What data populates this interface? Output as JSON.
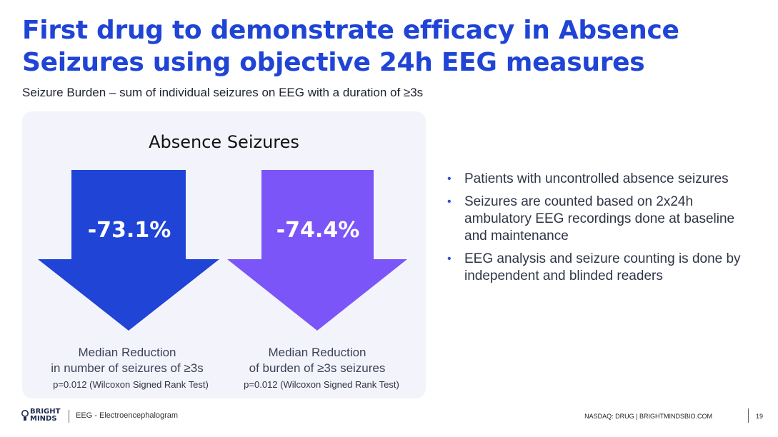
{
  "slide": {
    "title": "First drug to demonstrate efficacy in Absence Seizures using objective 24h EEG measures",
    "subtitle": "Seizure Burden – sum of individual seizures on EEG with a duration of ≥3s"
  },
  "panel": {
    "title": "Absence Seizures",
    "metrics": [
      {
        "value": "-73.1%",
        "caption_line1": "Median Reduction",
        "caption_line2": "in number of seizures of ≥3s",
        "p_value": "p=0.012 (Wilcoxon Signed Rank Test)",
        "color": "#1f44d6"
      },
      {
        "value": "-74.4%",
        "caption_line1": "Median Reduction",
        "caption_line2": "of burden of ≥3s seizures",
        "p_value": "p=0.012 (Wilcoxon Signed Rank Test)",
        "color": "#7b55f7"
      }
    ]
  },
  "bullets": [
    "Patients with uncontrolled absence seizures",
    "Seizures are counted based on 2x24h ambulatory EEG recordings done at baseline and maintenance",
    "EEG analysis and seizure counting is done by independent and blinded readers"
  ],
  "footer": {
    "logo_line1": "BRIGHT",
    "logo_line2": "MINDS",
    "note": "EEG - Electroencephalogram",
    "right_text": "NASDAQ: DRUG | BRIGHTMINDSBIO.COM",
    "page_number": "19"
  },
  "colors": {
    "title": "#1f44d6",
    "arrow_blue": "#1f44d6",
    "arrow_purple": "#7b55f7",
    "panel_bg": "#f3f4fb"
  }
}
